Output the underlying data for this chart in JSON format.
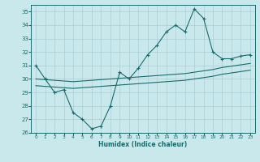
{
  "xlabel": "Humidex (Indice chaleur)",
  "xlim": [
    -0.5,
    23.5
  ],
  "ylim": [
    26,
    35.5
  ],
  "yticks": [
    26,
    27,
    28,
    29,
    30,
    31,
    32,
    33,
    34,
    35
  ],
  "xticks": [
    0,
    1,
    2,
    3,
    4,
    5,
    6,
    7,
    8,
    9,
    10,
    11,
    12,
    13,
    14,
    15,
    16,
    17,
    18,
    19,
    20,
    21,
    22,
    23
  ],
  "background_color": "#c8e8ec",
  "grid_color": "#aacdd4",
  "line_color": "#1a6b6b",
  "curve1_x": [
    0,
    1,
    2,
    3,
    4,
    5,
    6,
    7,
    8,
    9,
    10,
    11,
    12,
    13,
    14,
    15,
    16,
    17,
    18,
    19,
    20,
    21,
    22,
    23
  ],
  "curve1_y": [
    31.0,
    30.0,
    29.0,
    29.2,
    27.5,
    27.0,
    26.3,
    26.5,
    28.0,
    30.5,
    30.0,
    30.8,
    31.8,
    32.5,
    33.5,
    34.0,
    33.5,
    35.2,
    34.5,
    32.0,
    31.5,
    31.5,
    31.7,
    31.8
  ],
  "curve2_x": [
    0,
    1,
    2,
    3,
    4,
    5,
    6,
    7,
    8,
    9,
    10,
    11,
    12,
    13,
    14,
    15,
    16,
    17,
    18,
    19,
    20,
    21,
    22,
    23
  ],
  "curve2_y": [
    30.0,
    29.95,
    29.9,
    29.85,
    29.8,
    29.85,
    29.9,
    29.95,
    30.0,
    30.05,
    30.1,
    30.15,
    30.2,
    30.25,
    30.3,
    30.35,
    30.4,
    30.5,
    30.6,
    30.7,
    30.85,
    30.95,
    31.05,
    31.15
  ],
  "curve3_x": [
    0,
    1,
    2,
    3,
    4,
    5,
    6,
    7,
    8,
    9,
    10,
    11,
    12,
    13,
    14,
    15,
    16,
    17,
    18,
    19,
    20,
    21,
    22,
    23
  ],
  "curve3_y": [
    29.5,
    29.45,
    29.4,
    29.35,
    29.3,
    29.35,
    29.4,
    29.45,
    29.5,
    29.55,
    29.6,
    29.65,
    29.7,
    29.75,
    29.8,
    29.85,
    29.9,
    30.0,
    30.1,
    30.2,
    30.35,
    30.45,
    30.55,
    30.65
  ]
}
